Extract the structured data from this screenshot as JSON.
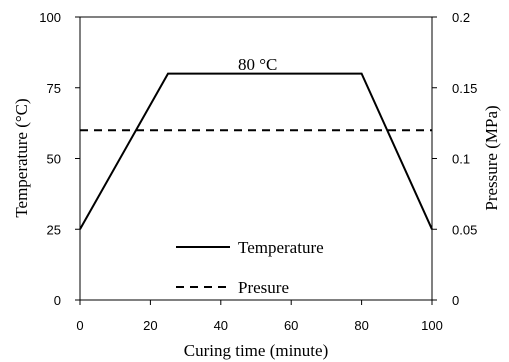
{
  "chart_data": {
    "type": "line",
    "xlabel": "Curing time (minute)",
    "ylabel": "Temperature (°C)",
    "y2label": "Pressure (MPa)",
    "xlim": [
      0,
      100
    ],
    "ylim": [
      0,
      100
    ],
    "y2lim": [
      0,
      0.2
    ],
    "x_ticks": [
      "0",
      "20",
      "40",
      "60",
      "80",
      "100"
    ],
    "y_ticks": [
      "0",
      "25",
      "50",
      "75",
      "100"
    ],
    "y2_ticks": [
      "0",
      "0.05",
      "0.1",
      "0.15",
      "0.2"
    ],
    "grid": false,
    "legend_position": "bottom-center",
    "annotation": "80 °C",
    "series": [
      {
        "name": "Temperature",
        "axis": "left",
        "style": "solid",
        "x": [
          0,
          25,
          80,
          100
        ],
        "y": [
          25,
          80,
          80,
          25
        ]
      },
      {
        "name": "Presure",
        "axis": "right",
        "style": "dashed",
        "x": [
          0,
          100
        ],
        "y": [
          0.12,
          0.12
        ]
      }
    ]
  }
}
